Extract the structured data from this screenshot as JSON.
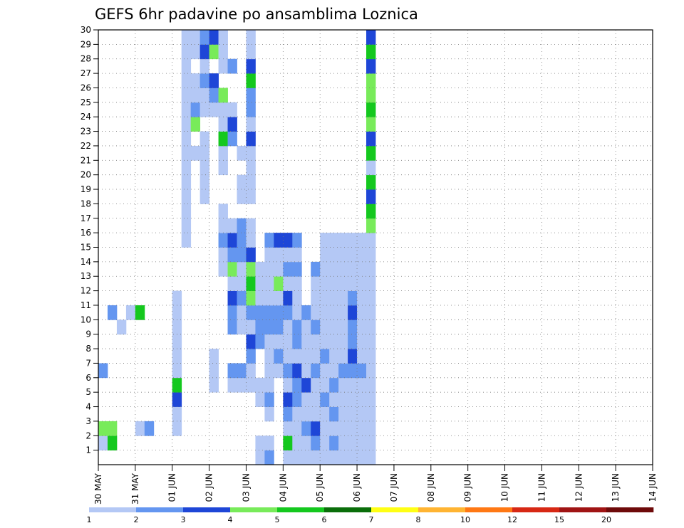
{
  "chart_data": {
    "type": "heatmap",
    "title": "GEFS 6hr padavine po ansamblima Loznica",
    "x_ticks": [
      "30 MAY",
      "31 MAY",
      "01 JUN",
      "02 JUN",
      "03 JUN",
      "04 JUN",
      "05 JUN",
      "06 JUN",
      "07 JUN",
      "08 JUN",
      "09 JUN",
      "10 JUN",
      "11 JUN",
      "12 JUN",
      "13 JUN",
      "14 JUN"
    ],
    "x_steps_per_day": 4,
    "y_ticks": [
      "1",
      "2",
      "3",
      "4",
      "5",
      "6",
      "7",
      "8",
      "9",
      "10",
      "11",
      "12",
      "13",
      "14",
      "15",
      "16",
      "17",
      "18",
      "19",
      "20",
      "21",
      "22",
      "23",
      "24",
      "25",
      "26",
      "27",
      "28",
      "29",
      "30"
    ],
    "grid": true,
    "legend": {
      "placement": "bottom",
      "labels": [
        "1",
        "2",
        "3",
        "4",
        "5",
        "6",
        "7",
        "8",
        "10",
        "12",
        "15",
        "20"
      ],
      "colors": [
        "#b4c8f5",
        "#6496f0",
        "#1e46d7",
        "#78eb5a",
        "#14c81e",
        "#0a6e0a",
        "#ffff14",
        "#ffb432",
        "#ff7814",
        "#d72814",
        "#a01414",
        "#6e0a0a"
      ]
    },
    "cells": [
      [
        1,
        0,
        1
      ],
      [
        1,
        1,
        5
      ],
      [
        2,
        0,
        4
      ],
      [
        2,
        1,
        4
      ],
      [
        2,
        4,
        1
      ],
      [
        2,
        5,
        2
      ],
      [
        6,
        0,
        2
      ],
      [
        9,
        2,
        1
      ],
      [
        10,
        1,
        2
      ],
      [
        10,
        3,
        1
      ],
      [
        10,
        4,
        5
      ],
      [
        2,
        8,
        1
      ],
      [
        3,
        8,
        1
      ],
      [
        4,
        8,
        3
      ],
      [
        5,
        8,
        5
      ],
      [
        6,
        8,
        1
      ],
      [
        7,
        8,
        1
      ],
      [
        8,
        8,
        1
      ],
      [
        9,
        8,
        1
      ],
      [
        10,
        8,
        1
      ],
      [
        11,
        8,
        1
      ],
      [
        15,
        9,
        1
      ],
      [
        16,
        9,
        1
      ],
      [
        17,
        9,
        1
      ],
      [
        18,
        9,
        1
      ],
      [
        19,
        9,
        1
      ],
      [
        20,
        9,
        1
      ],
      [
        21,
        9,
        1
      ],
      [
        22,
        9,
        1
      ],
      [
        23,
        9,
        1
      ],
      [
        24,
        9,
        1
      ],
      [
        25,
        9,
        1
      ],
      [
        26,
        9,
        1
      ],
      [
        27,
        9,
        1
      ],
      [
        28,
        9,
        1
      ],
      [
        29,
        9,
        1
      ],
      [
        21,
        10,
        1
      ],
      [
        23,
        10,
        4
      ],
      [
        24,
        10,
        2
      ],
      [
        25,
        10,
        1
      ],
      [
        26,
        10,
        1
      ],
      [
        28,
        10,
        1
      ],
      [
        29,
        10,
        1
      ],
      [
        18,
        11,
        1
      ],
      [
        19,
        11,
        1
      ],
      [
        20,
        11,
        1
      ],
      [
        21,
        11,
        1
      ],
      [
        22,
        11,
        1
      ],
      [
        24,
        11,
        1
      ],
      [
        25,
        11,
        1
      ],
      [
        26,
        11,
        2
      ],
      [
        27,
        11,
        1
      ],
      [
        28,
        11,
        3
      ],
      [
        29,
        11,
        2
      ],
      [
        5,
        12,
        1
      ],
      [
        6,
        12,
        1
      ],
      [
        7,
        12,
        1
      ],
      [
        24,
        12,
        1
      ],
      [
        25,
        12,
        2
      ],
      [
        26,
        12,
        3
      ],
      [
        28,
        12,
        4
      ],
      [
        29,
        12,
        3
      ],
      [
        13,
        13,
        1
      ],
      [
        14,
        13,
        1
      ],
      [
        15,
        13,
        2
      ],
      [
        16,
        13,
        1
      ],
      [
        17,
        13,
        1
      ],
      [
        20,
        13,
        1
      ],
      [
        21,
        13,
        1
      ],
      [
        22,
        13,
        5
      ],
      [
        23,
        13,
        1
      ],
      [
        24,
        13,
        1
      ],
      [
        25,
        13,
        4
      ],
      [
        27,
        13,
        1
      ],
      [
        28,
        13,
        1
      ],
      [
        29,
        13,
        1
      ],
      [
        5,
        14,
        1
      ],
      [
        6,
        14,
        2
      ],
      [
        9,
        14,
        2
      ],
      [
        10,
        14,
        2
      ],
      [
        11,
        14,
        3
      ],
      [
        12,
        14,
        1
      ],
      [
        13,
        14,
        4
      ],
      [
        14,
        14,
        2
      ],
      [
        15,
        14,
        3
      ],
      [
        16,
        14,
        1
      ],
      [
        22,
        14,
        2
      ],
      [
        23,
        14,
        3
      ],
      [
        24,
        14,
        1
      ],
      [
        27,
        14,
        2
      ],
      [
        5,
        15,
        1
      ],
      [
        6,
        15,
        2
      ],
      [
        9,
        15,
        1
      ],
      [
        10,
        15,
        1
      ],
      [
        11,
        15,
        2
      ],
      [
        12,
        15,
        1
      ],
      [
        13,
        15,
        1
      ],
      [
        14,
        15,
        2
      ],
      [
        15,
        15,
        2
      ],
      [
        16,
        15,
        2
      ],
      [
        18,
        15,
        1
      ],
      [
        19,
        15,
        1
      ],
      [
        21,
        15,
        1
      ],
      [
        5,
        16,
        1
      ],
      [
        6,
        16,
        1
      ],
      [
        7,
        16,
        2
      ],
      [
        8,
        16,
        3
      ],
      [
        9,
        16,
        1
      ],
      [
        10,
        16,
        2
      ],
      [
        11,
        16,
        4
      ],
      [
        12,
        16,
        5
      ],
      [
        13,
        16,
        4
      ],
      [
        14,
        16,
        3
      ],
      [
        15,
        16,
        1
      ],
      [
        16,
        16,
        1
      ],
      [
        18,
        16,
        1
      ],
      [
        19,
        16,
        1
      ],
      [
        20,
        16,
        1
      ],
      [
        21,
        16,
        1
      ],
      [
        22,
        16,
        3
      ],
      [
        23,
        16,
        1
      ],
      [
        24,
        16,
        2
      ],
      [
        25,
        16,
        2
      ],
      [
        26,
        16,
        5
      ],
      [
        27,
        16,
        3
      ],
      [
        28,
        16,
        1
      ],
      [
        29,
        16,
        1
      ],
      [
        0,
        17,
        1
      ],
      [
        1,
        17,
        1
      ],
      [
        4,
        17,
        1
      ],
      [
        5,
        17,
        1
      ],
      [
        8,
        17,
        2
      ],
      [
        9,
        17,
        2
      ],
      [
        10,
        17,
        2
      ],
      [
        11,
        17,
        1
      ],
      [
        12,
        17,
        1
      ],
      [
        13,
        17,
        1
      ],
      [
        0,
        18,
        2
      ],
      [
        1,
        18,
        1
      ],
      [
        3,
        18,
        1
      ],
      [
        4,
        18,
        2
      ],
      [
        5,
        18,
        1
      ],
      [
        6,
        18,
        1
      ],
      [
        7,
        18,
        1
      ],
      [
        8,
        18,
        1
      ],
      [
        9,
        18,
        2
      ],
      [
        10,
        18,
        2
      ],
      [
        11,
        18,
        1
      ],
      [
        12,
        18,
        1
      ],
      [
        13,
        18,
        1
      ],
      [
        14,
        18,
        1
      ],
      [
        15,
        18,
        2
      ],
      [
        6,
        19,
        1
      ],
      [
        7,
        19,
        2
      ],
      [
        8,
        19,
        1
      ],
      [
        9,
        19,
        2
      ],
      [
        10,
        19,
        2
      ],
      [
        11,
        19,
        1
      ],
      [
        12,
        19,
        4
      ],
      [
        13,
        19,
        1
      ],
      [
        14,
        19,
        1
      ],
      [
        15,
        19,
        3
      ],
      [
        0,
        20,
        1
      ],
      [
        1,
        20,
        5
      ],
      [
        2,
        20,
        1
      ],
      [
        3,
        20,
        2
      ],
      [
        4,
        20,
        3
      ],
      [
        5,
        20,
        1
      ],
      [
        6,
        20,
        2
      ],
      [
        7,
        20,
        1
      ],
      [
        8,
        20,
        1
      ],
      [
        9,
        20,
        1
      ],
      [
        10,
        20,
        2
      ],
      [
        11,
        20,
        3
      ],
      [
        12,
        20,
        1
      ],
      [
        13,
        20,
        2
      ],
      [
        14,
        20,
        1
      ],
      [
        15,
        20,
        3
      ],
      [
        0,
        21,
        1
      ],
      [
        1,
        21,
        1
      ],
      [
        2,
        21,
        1
      ],
      [
        3,
        21,
        1
      ],
      [
        4,
        21,
        2
      ],
      [
        5,
        21,
        2
      ],
      [
        6,
        21,
        3
      ],
      [
        7,
        21,
        1
      ],
      [
        8,
        21,
        2
      ],
      [
        9,
        21,
        2
      ],
      [
        10,
        21,
        1
      ],
      [
        11,
        21,
        1
      ],
      [
        12,
        21,
        1
      ],
      [
        13,
        21,
        2
      ],
      [
        14,
        21,
        1
      ],
      [
        15,
        21,
        2
      ],
      [
        0,
        22,
        1
      ],
      [
        1,
        22,
        1
      ],
      [
        2,
        22,
        2
      ],
      [
        3,
        22,
        1
      ],
      [
        4,
        22,
        1
      ],
      [
        5,
        22,
        3
      ],
      [
        6,
        22,
        1
      ],
      [
        7,
        22,
        1
      ],
      [
        8,
        22,
        1
      ],
      [
        9,
        22,
        1
      ],
      [
        10,
        22,
        2
      ],
      [
        0,
        23,
        1
      ],
      [
        1,
        23,
        2
      ],
      [
        2,
        23,
        3
      ],
      [
        3,
        23,
        1
      ],
      [
        4,
        23,
        1
      ],
      [
        5,
        23,
        1
      ],
      [
        6,
        23,
        2
      ],
      [
        7,
        23,
        1
      ],
      [
        8,
        23,
        1
      ],
      [
        9,
        23,
        2
      ],
      [
        10,
        23,
        1
      ],
      [
        11,
        23,
        1
      ],
      [
        12,
        23,
        1
      ],
      [
        13,
        23,
        2
      ],
      [
        0,
        24,
        1
      ],
      [
        1,
        24,
        1
      ],
      [
        2,
        24,
        1
      ],
      [
        3,
        24,
        1
      ],
      [
        4,
        24,
        2
      ],
      [
        5,
        24,
        1
      ],
      [
        6,
        24,
        1
      ],
      [
        7,
        24,
        2
      ],
      [
        8,
        24,
        1
      ],
      [
        9,
        24,
        1
      ],
      [
        10,
        24,
        1
      ],
      [
        11,
        24,
        1
      ],
      [
        12,
        24,
        1
      ],
      [
        13,
        24,
        1
      ],
      [
        14,
        24,
        1
      ],
      [
        15,
        24,
        1
      ],
      [
        0,
        25,
        1
      ],
      [
        1,
        25,
        2
      ],
      [
        2,
        25,
        1
      ],
      [
        3,
        25,
        2
      ],
      [
        4,
        25,
        1
      ],
      [
        5,
        25,
        2
      ],
      [
        6,
        25,
        1
      ],
      [
        7,
        25,
        1
      ],
      [
        8,
        25,
        1
      ],
      [
        9,
        25,
        1
      ],
      [
        10,
        25,
        1
      ],
      [
        11,
        25,
        1
      ],
      [
        12,
        25,
        1
      ],
      [
        13,
        25,
        1
      ],
      [
        14,
        25,
        1
      ],
      [
        15,
        25,
        1
      ],
      [
        0,
        26,
        1
      ],
      [
        1,
        26,
        1
      ],
      [
        2,
        26,
        1
      ],
      [
        3,
        26,
        1
      ],
      [
        4,
        26,
        1
      ],
      [
        5,
        26,
        1
      ],
      [
        6,
        26,
        2
      ],
      [
        7,
        26,
        1
      ],
      [
        8,
        26,
        1
      ],
      [
        9,
        26,
        1
      ],
      [
        10,
        26,
        1
      ],
      [
        11,
        26,
        1
      ],
      [
        12,
        26,
        1
      ],
      [
        13,
        26,
        1
      ],
      [
        14,
        26,
        1
      ],
      [
        15,
        26,
        1
      ],
      [
        0,
        27,
        1
      ],
      [
        1,
        27,
        1
      ],
      [
        2,
        27,
        1
      ],
      [
        3,
        27,
        1
      ],
      [
        4,
        27,
        1
      ],
      [
        5,
        27,
        1
      ],
      [
        6,
        27,
        2
      ],
      [
        7,
        27,
        3
      ],
      [
        8,
        27,
        2
      ],
      [
        9,
        27,
        2
      ],
      [
        10,
        27,
        3
      ],
      [
        11,
        27,
        2
      ],
      [
        12,
        27,
        1
      ],
      [
        13,
        27,
        1
      ],
      [
        14,
        27,
        1
      ],
      [
        15,
        27,
        1
      ],
      [
        0,
        28,
        1
      ],
      [
        1,
        28,
        1
      ],
      [
        2,
        28,
        1
      ],
      [
        3,
        28,
        1
      ],
      [
        4,
        28,
        1
      ],
      [
        5,
        28,
        1
      ],
      [
        6,
        28,
        2
      ],
      [
        7,
        28,
        1
      ],
      [
        8,
        28,
        1
      ],
      [
        9,
        28,
        1
      ],
      [
        10,
        28,
        1
      ],
      [
        11,
        28,
        1
      ],
      [
        12,
        28,
        1
      ],
      [
        13,
        28,
        1
      ],
      [
        14,
        28,
        1
      ],
      [
        15,
        28,
        1
      ],
      [
        0,
        29,
        1
      ],
      [
        1,
        29,
        1
      ],
      [
        2,
        29,
        1
      ],
      [
        3,
        29,
        1
      ],
      [
        4,
        29,
        1
      ],
      [
        5,
        29,
        1
      ],
      [
        6,
        29,
        1
      ],
      [
        7,
        29,
        1
      ],
      [
        8,
        29,
        1
      ],
      [
        9,
        29,
        1
      ],
      [
        10,
        29,
        1
      ],
      [
        11,
        29,
        1
      ],
      [
        12,
        29,
        1
      ],
      [
        13,
        29,
        1
      ],
      [
        14,
        29,
        1
      ],
      [
        15,
        29,
        1
      ],
      [
        16,
        29,
        4
      ],
      [
        17,
        29,
        5
      ],
      [
        18,
        29,
        3
      ],
      [
        19,
        29,
        5
      ],
      [
        20,
        29,
        1
      ],
      [
        21,
        29,
        5
      ],
      [
        22,
        29,
        3
      ],
      [
        23,
        29,
        4
      ],
      [
        24,
        29,
        5
      ],
      [
        25,
        29,
        4
      ],
      [
        26,
        29,
        4
      ],
      [
        27,
        29,
        3
      ],
      [
        28,
        29,
        5
      ],
      [
        29,
        29,
        3
      ]
    ]
  }
}
